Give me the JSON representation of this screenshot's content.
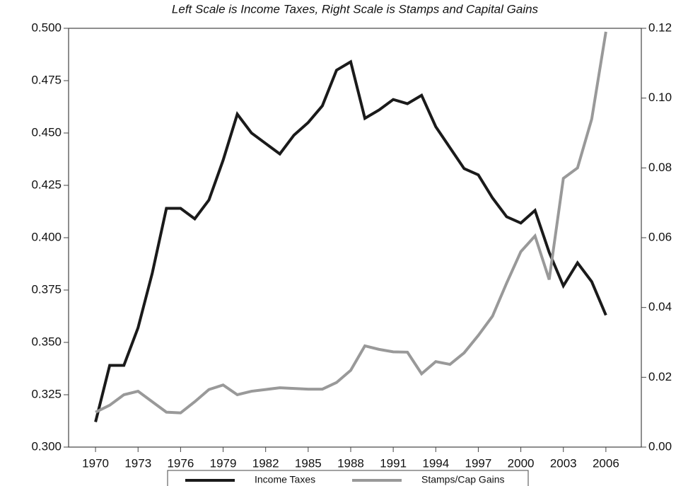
{
  "chart_data": {
    "type": "line",
    "title": "Left Scale is Income Taxes, Right Scale is Stamps and Capital Gains",
    "x": [
      1970,
      1971,
      1972,
      1973,
      1974,
      1975,
      1976,
      1977,
      1978,
      1979,
      1980,
      1981,
      1982,
      1983,
      1984,
      1985,
      1986,
      1987,
      1988,
      1989,
      1990,
      1991,
      1992,
      1993,
      1994,
      1995,
      1996,
      1997,
      1998,
      1999,
      2000,
      2001,
      2002,
      2003,
      2004,
      2005,
      2006
    ],
    "series": [
      {
        "name": "Income Taxes",
        "color": "#1a1a1a",
        "values": [
          0.312,
          0.339,
          0.339,
          0.357,
          0.383,
          0.414,
          0.414,
          0.409,
          0.418,
          0.437,
          0.459,
          0.45,
          0.445,
          0.44,
          0.449,
          0.455,
          0.463,
          0.48,
          0.484,
          0.457,
          0.461,
          0.466,
          0.464,
          0.468,
          0.453,
          0.443,
          0.433,
          0.43,
          0.419,
          0.41,
          0.407,
          0.413,
          0.393,
          0.377,
          0.388,
          0.379,
          0.363
        ]
      },
      {
        "name": "Stamps/Cap Gains",
        "color": "#999999",
        "axis": "y2",
        "values": [
          0.01,
          0.012,
          0.015,
          0.016,
          0.013,
          0.01,
          0.0098,
          0.013,
          0.0165,
          0.0178,
          0.015,
          0.016,
          0.0165,
          0.017,
          0.0168,
          0.0166,
          0.0166,
          0.0185,
          0.022,
          0.029,
          0.028,
          0.0273,
          0.0272,
          0.021,
          0.0245,
          0.0237,
          0.027,
          0.032,
          0.0375,
          0.047,
          0.056,
          0.0605,
          0.048,
          0.077,
          0.08,
          0.094,
          0.119
        ]
      }
    ],
    "xlim": [
      1968.1,
      2008.5
    ],
    "xticks": [
      1970,
      1973,
      1976,
      1979,
      1982,
      1985,
      1988,
      1991,
      1994,
      1997,
      2000,
      2003,
      2006
    ],
    "ylim": [
      0.3,
      0.5
    ],
    "yticks": [
      {
        "value": 0.3,
        "label": "0.300"
      },
      {
        "value": 0.325,
        "label": "0.325"
      },
      {
        "value": 0.35,
        "label": "0.350"
      },
      {
        "value": 0.375,
        "label": "0.375"
      },
      {
        "value": 0.4,
        "label": "0.400"
      },
      {
        "value": 0.425,
        "label": "0.425"
      },
      {
        "value": 0.45,
        "label": "0.450"
      },
      {
        "value": 0.475,
        "label": "0.475"
      },
      {
        "value": 0.5,
        "label": "0.500"
      }
    ],
    "y2lim": [
      0,
      0.12
    ],
    "y2ticks": [
      {
        "value": 0,
        "label": "0.00"
      },
      {
        "value": 0.02,
        "label": "0.02"
      },
      {
        "value": 0.04,
        "label": "0.04"
      },
      {
        "value": 0.06,
        "label": "0.06"
      },
      {
        "value": 0.08,
        "label": "0.08"
      },
      {
        "value": 0.1,
        "label": "0.10"
      },
      {
        "value": 0.12,
        "label": "0.12"
      }
    ],
    "legend": "bottom"
  }
}
